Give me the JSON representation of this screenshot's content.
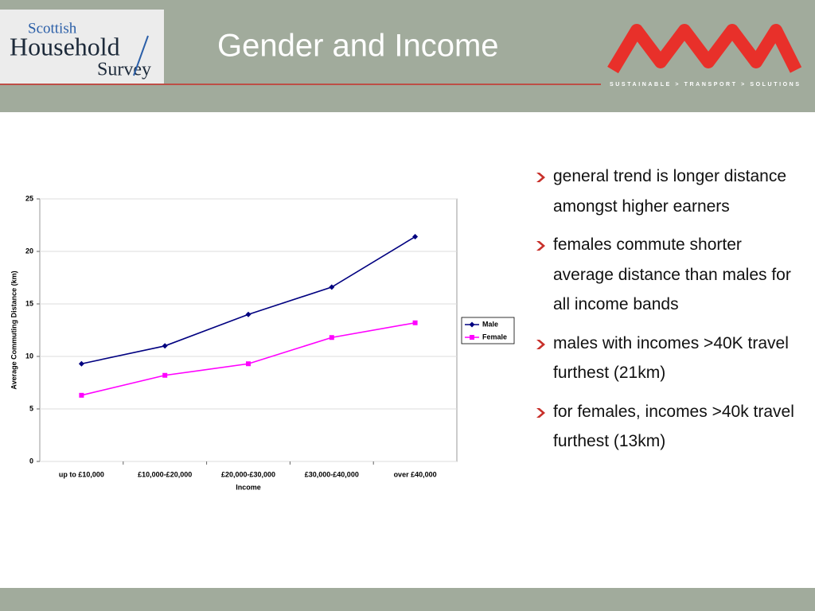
{
  "header": {
    "title": "Gender and Income",
    "logo": [
      "Scottish",
      "Household",
      "Survey"
    ],
    "tagline": "SUSTAINABLE > TRANSPORT > SOLUTIONS"
  },
  "chart_data": {
    "type": "line",
    "categories": [
      "up to £10,000",
      "£10,000-£20,000",
      "£20,000-£30,000",
      "£30,000-£40,000",
      "over £40,000"
    ],
    "series": [
      {
        "name": "Male",
        "color": "#000080",
        "marker": "diamond",
        "values": [
          9.3,
          11.0,
          14.0,
          16.6,
          21.4
        ]
      },
      {
        "name": "Female",
        "color": "#ff00ff",
        "marker": "square",
        "values": [
          6.3,
          8.2,
          9.3,
          11.8,
          13.2
        ]
      }
    ],
    "ylim": [
      0,
      25
    ],
    "yticks": [
      0,
      5,
      10,
      15,
      20,
      25
    ],
    "grid": true,
    "xlabel": "Income",
    "ylabel": "Average Commuting Distance (km)",
    "legend": "right"
  },
  "bullets": [
    "general trend is longer distance amongst higher earners",
    "females commute shorter average distance than males for all income bands",
    "males with incomes >40K travel furthest (21km)",
    "for females, incomes >40k travel furthest (13km)"
  ]
}
